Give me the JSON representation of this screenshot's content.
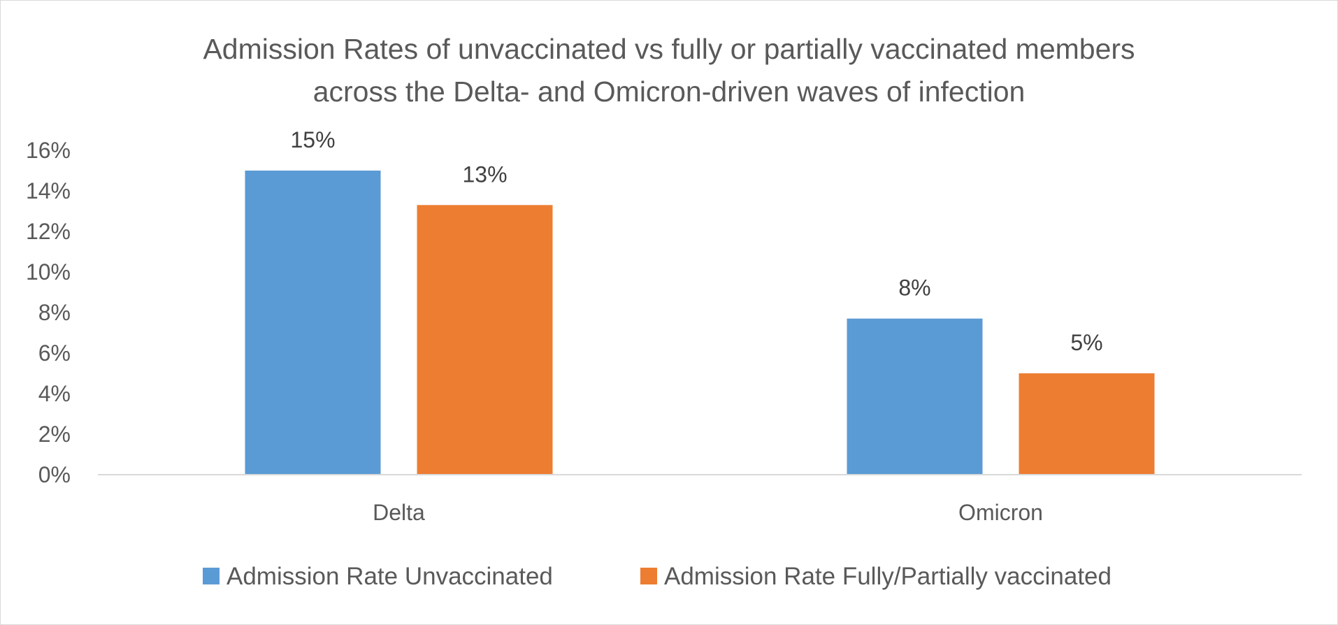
{
  "chart_data": {
    "type": "bar",
    "title": "Admission Rates of unvaccinated vs fully or partially vaccinated members across the Delta- and Omicron-driven waves of infection",
    "title_lines": [
      "Admission Rates of unvaccinated vs fully or partially vaccinated members",
      "across the Delta- and Omicron-driven waves of infection"
    ],
    "categories": [
      "Delta",
      "Omicron"
    ],
    "series": [
      {
        "name": "Admission Rate Unvaccinated",
        "values": [
          0.15,
          0.077
        ],
        "labels": [
          "15%",
          "8%"
        ],
        "color": "#5b9bd5"
      },
      {
        "name": "Admission Rate Fully/Partially vaccinated",
        "values": [
          0.133,
          0.05
        ],
        "labels": [
          "13%",
          "5%"
        ],
        "color": "#ed7d31"
      }
    ],
    "ylim": [
      0,
      0.16
    ],
    "yticks": [
      0,
      0.02,
      0.04,
      0.06,
      0.08,
      0.1,
      0.12,
      0.14,
      0.16
    ],
    "ytick_labels": [
      "0%",
      "2%",
      "4%",
      "6%",
      "8%",
      "10%",
      "12%",
      "14%",
      "16%"
    ],
    "xlabel": "",
    "ylabel": "",
    "grid": false,
    "legend_position": "bottom"
  }
}
